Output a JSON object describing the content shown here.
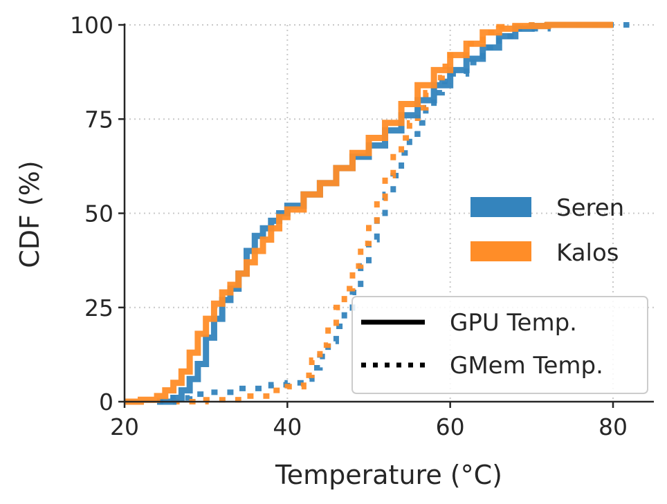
{
  "chart_data": {
    "type": "line",
    "title": "",
    "xlabel": "Temperature (°C)",
    "ylabel": "CDF (%)",
    "xlim": [
      20,
      85
    ],
    "ylim": [
      0,
      100
    ],
    "xticks": [
      20,
      40,
      60,
      80
    ],
    "yticks": [
      0,
      25,
      50,
      75,
      100
    ],
    "grid": true,
    "step": true,
    "colors": {
      "Seren": "#3484bd",
      "Kalos": "#ff8d28"
    },
    "legend_cluster": {
      "placement": "right",
      "entries": [
        "Seren",
        "Kalos"
      ]
    },
    "legend_metric": {
      "placement": "lower-right",
      "entries": [
        {
          "label": "GPU Temp.",
          "style": "solid"
        },
        {
          "label": "GMem Temp.",
          "style": "dotted"
        }
      ]
    },
    "series": [
      {
        "cluster": "Seren",
        "metric": "GPU Temp.",
        "style": "solid",
        "x": [
          24,
          26,
          27,
          28,
          29,
          30,
          31,
          32,
          33,
          34,
          35,
          36,
          37,
          38,
          39,
          40,
          42,
          44,
          46,
          48,
          50,
          52,
          54,
          56,
          58,
          60,
          62,
          64,
          66,
          68,
          70,
          72,
          80
        ],
        "y": [
          0,
          1,
          3,
          6,
          10,
          17,
          22,
          27,
          30,
          34,
          40,
          44,
          46,
          48,
          50,
          52,
          55,
          58,
          62,
          65,
          68,
          72,
          76,
          80,
          84,
          88,
          91,
          94,
          97,
          99,
          99.7,
          100,
          100
        ]
      },
      {
        "cluster": "Kalos",
        "metric": "GPU Temp.",
        "style": "solid",
        "x": [
          20,
          22,
          24,
          25,
          26,
          27,
          28,
          29,
          30,
          31,
          32,
          33,
          34,
          35,
          36,
          37,
          38,
          39,
          40,
          42,
          44,
          46,
          48,
          50,
          52,
          54,
          56,
          58,
          60,
          62,
          64,
          66,
          68,
          72,
          80
        ],
        "y": [
          0,
          0.5,
          1.5,
          3,
          5,
          8,
          13,
          18,
          22,
          26,
          29,
          31,
          34,
          37,
          40,
          43,
          46,
          49,
          51,
          55,
          58,
          62,
          66,
          70,
          74,
          79,
          84,
          88,
          92,
          95,
          98,
          99,
          99.7,
          100,
          100
        ]
      },
      {
        "cluster": "Seren",
        "metric": "GMem Temp.",
        "style": "dotted",
        "x": [
          24,
          26,
          28,
          30,
          34,
          38,
          40,
          42,
          43,
          44,
          45,
          46,
          47,
          48,
          49,
          50,
          51,
          52,
          53,
          54,
          55,
          56,
          57,
          58,
          59,
          60,
          62,
          64,
          66,
          68,
          72,
          82
        ],
        "y": [
          0,
          1,
          2,
          2.5,
          3.5,
          4.5,
          5,
          6,
          9,
          12,
          16,
          20,
          24,
          29,
          36,
          43,
          50,
          55,
          60,
          66,
          71,
          74,
          78,
          82,
          85,
          87,
          90,
          94,
          97,
          99,
          100,
          100
        ]
      },
      {
        "cluster": "Kalos",
        "metric": "GMem Temp.",
        "style": "dotted",
        "x": [
          26,
          30,
          34,
          38,
          40,
          42,
          43,
          44,
          45,
          46,
          47,
          48,
          49,
          50,
          51,
          52,
          53,
          54,
          55,
          56,
          57,
          58,
          59,
          60,
          62,
          64,
          66,
          70,
          80
        ],
        "y": [
          0,
          0.5,
          1.5,
          3,
          4,
          7,
          11,
          15,
          20,
          25,
          30,
          36,
          42,
          48,
          54,
          60,
          65,
          70,
          74,
          78,
          82,
          86,
          89,
          92,
          95,
          98,
          99.5,
          100,
          100
        ]
      }
    ]
  }
}
